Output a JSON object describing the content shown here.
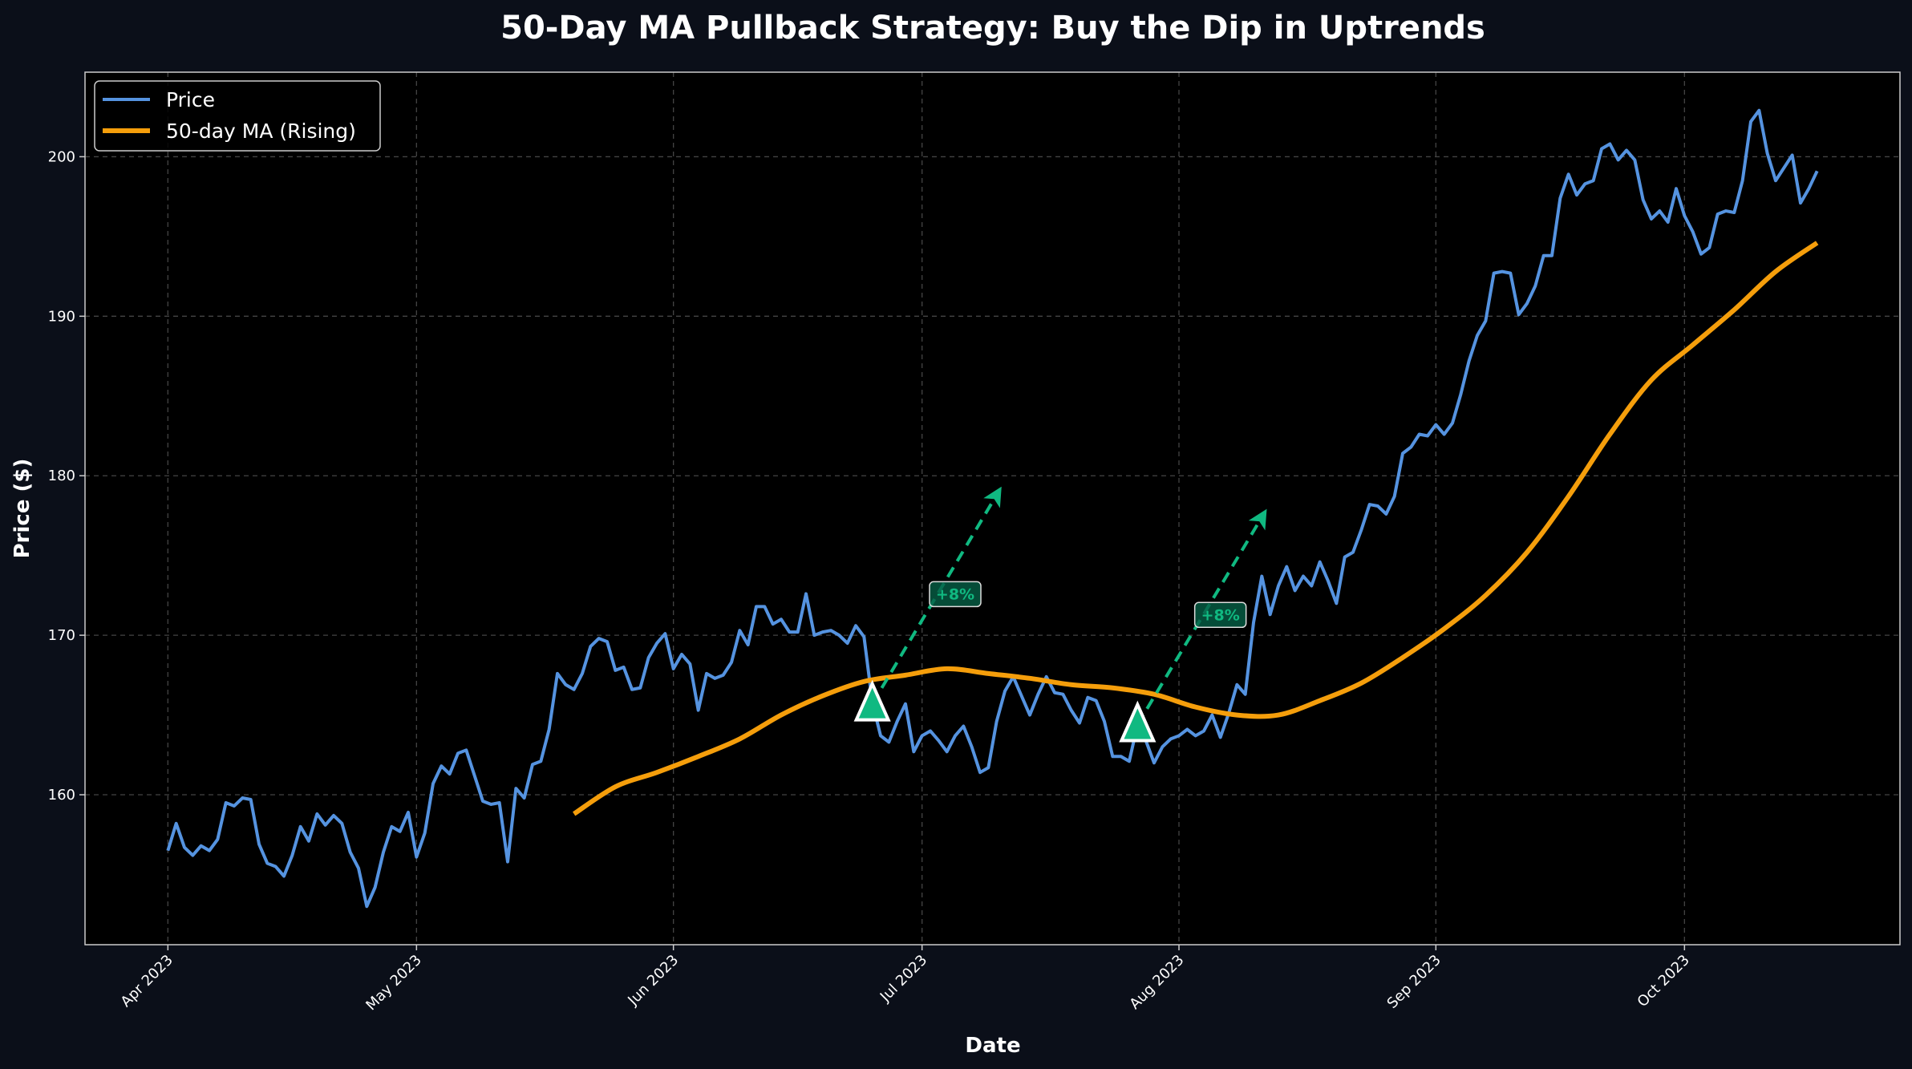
{
  "chart_data": {
    "type": "line",
    "title": "50-Day MA Pullback Strategy: Buy the Dip in Uptrends",
    "xlabel": "Date",
    "ylabel": "Price ($)",
    "xlim": [
      "2023-03-22",
      "2023-10-27"
    ],
    "ylim": [
      150.6,
      205.3
    ],
    "y_ticks": [
      160,
      170,
      180,
      190,
      200
    ],
    "x_ticks": [
      {
        "date": "2023-04-01",
        "label": "Apr 2023"
      },
      {
        "date": "2023-05-01",
        "label": "May 2023"
      },
      {
        "date": "2023-06-01",
        "label": "Jun 2023"
      },
      {
        "date": "2023-07-01",
        "label": "Jul 2023"
      },
      {
        "date": "2023-08-01",
        "label": "Aug 2023"
      },
      {
        "date": "2023-09-01",
        "label": "Sep 2023"
      },
      {
        "date": "2023-10-01",
        "label": "Oct 2023"
      }
    ],
    "grid": true,
    "legend_position": "top-left",
    "colors": {
      "price": "#5593e0",
      "ma": "#f59e0b",
      "signal": "#10b981",
      "background": "#0b0f19",
      "plot_background": "#000000"
    },
    "series": [
      {
        "name": "Price",
        "frequency": "daily",
        "values_by_month": {
          "2023-04": [
            156.5,
            158.2,
            156.7,
            156.2,
            156.8,
            156.5,
            157.2,
            159.5,
            159.3,
            159.8,
            159.7,
            156.9,
            155.7,
            155.5,
            154.9,
            156.2,
            158.0,
            157.1,
            158.8,
            158.1,
            158.7,
            158.2,
            156.4,
            155.4,
            153.0,
            154.2,
            156.4,
            158.0,
            157.7,
            158.9
          ],
          "2023-05": [
            156.1,
            157.6,
            160.7,
            161.8,
            161.3,
            162.6,
            162.8,
            161.2,
            159.6,
            159.4,
            159.5,
            155.8,
            160.4,
            159.8,
            161.9,
            162.1,
            164.1,
            167.6,
            166.9,
            166.6,
            167.6,
            169.3,
            169.8,
            169.6,
            167.8,
            168.0,
            166.6,
            166.7,
            168.6,
            169.5,
            170.1
          ],
          "2023-06": [
            167.9,
            168.8,
            168.2,
            165.3,
            167.6,
            167.3,
            167.5,
            168.3,
            170.3,
            169.4,
            171.8,
            171.8,
            170.7,
            171.0,
            170.2,
            170.2,
            172.6,
            170.0,
            170.2,
            170.3,
            170.0,
            169.5,
            170.6,
            169.9,
            165.8,
            163.7,
            163.3,
            164.6,
            165.7,
            162.7
          ],
          "2023-07": [
            163.7,
            164.0,
            163.4,
            162.7,
            163.7,
            164.3,
            163.0,
            161.4,
            161.7,
            164.6,
            166.5,
            167.4,
            166.2,
            165.0,
            166.3,
            167.4,
            166.4,
            166.3,
            165.3,
            164.5,
            166.1,
            165.9,
            164.6,
            162.4,
            162.4,
            162.1,
            164.4,
            163.4,
            162.0,
            163.0,
            163.5
          ],
          "2023-08": [
            163.7,
            164.1,
            163.7,
            164.0,
            165.0,
            163.6,
            165.1,
            166.9,
            166.3,
            170.8,
            173.7,
            171.3,
            173.1,
            174.3,
            172.8,
            173.7,
            173.1,
            174.6,
            173.4,
            172.0,
            174.9,
            175.2,
            176.6,
            178.2,
            178.1,
            177.6,
            178.7,
            181.4,
            181.8,
            182.6,
            182.5
          ],
          "2023-09": [
            183.2,
            182.6,
            183.3,
            185.1,
            187.2,
            188.8,
            189.7,
            192.7,
            192.8,
            192.7,
            190.1,
            190.8,
            191.9,
            193.8,
            193.8,
            197.4,
            198.9,
            197.6,
            198.3,
            198.5,
            200.5,
            200.8,
            199.8,
            200.4,
            199.8,
            197.3,
            196.1,
            196.6,
            195.9,
            198.0
          ],
          "2023-10": [
            196.3,
            195.3,
            193.9,
            194.3,
            196.4,
            196.6,
            196.5,
            198.5,
            202.2,
            202.9,
            200.2,
            198.5,
            199.3,
            200.1,
            197.1,
            198.0,
            199.1
          ]
        }
      },
      {
        "name": "50-day MA (Rising)",
        "points": [
          [
            "2023-05-20",
            158.8
          ],
          [
            "2023-05-25",
            160.5
          ],
          [
            "2023-05-30",
            161.4
          ],
          [
            "2023-06-04",
            162.4
          ],
          [
            "2023-06-09",
            163.5
          ],
          [
            "2023-06-14",
            165.0
          ],
          [
            "2023-06-19",
            166.2
          ],
          [
            "2023-06-24",
            167.1
          ],
          [
            "2023-06-29",
            167.5
          ],
          [
            "2023-07-04",
            167.9
          ],
          [
            "2023-07-09",
            167.6
          ],
          [
            "2023-07-14",
            167.3
          ],
          [
            "2023-07-19",
            166.9
          ],
          [
            "2023-07-24",
            166.7
          ],
          [
            "2023-07-29",
            166.3
          ],
          [
            "2023-08-03",
            165.5
          ],
          [
            "2023-08-08",
            165.0
          ],
          [
            "2023-08-13",
            165.0
          ],
          [
            "2023-08-18",
            165.9
          ],
          [
            "2023-08-23",
            167.0
          ],
          [
            "2023-08-28",
            168.6
          ],
          [
            "2023-09-02",
            170.4
          ],
          [
            "2023-09-07",
            172.5
          ],
          [
            "2023-09-12",
            175.2
          ],
          [
            "2023-09-17",
            178.7
          ],
          [
            "2023-09-22",
            182.6
          ],
          [
            "2023-09-27",
            186.0
          ],
          [
            "2023-10-02",
            188.2
          ],
          [
            "2023-10-07",
            190.4
          ],
          [
            "2023-10-12",
            192.8
          ],
          [
            "2023-10-17",
            194.6
          ]
        ]
      }
    ],
    "signals": [
      {
        "date": "2023-06-25",
        "price": 165.7,
        "arrow_to": [
          "2023-07-10",
          178.8
        ],
        "label": "+8%",
        "label_at": [
          "2023-07-05",
          172.6
        ]
      },
      {
        "date": "2023-07-27",
        "price": 164.4,
        "arrow_to": [
          "2023-08-11",
          177.4
        ],
        "label": "+8%",
        "label_at": [
          "2023-08-06",
          171.3
        ]
      }
    ]
  }
}
